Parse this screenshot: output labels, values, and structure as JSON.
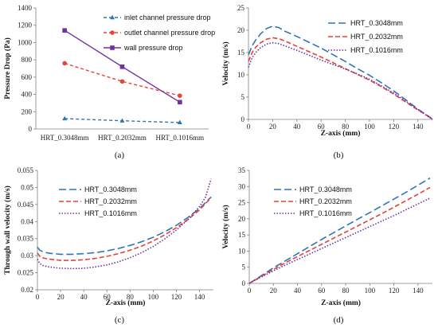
{
  "colors": {
    "blue": "#2e75b6",
    "red": "#e8423a",
    "purple": "#7030a0",
    "axis": "#7f7f7f"
  },
  "chart_data": [
    {
      "id": "a",
      "caption": "(a)",
      "type": "line",
      "categories": [
        "HRT_0.3048mm",
        "HRT_0.2032mm",
        "HRT_0.1016mm"
      ],
      "ylabel": "Pressure Drop (Pa)",
      "xlabel": "",
      "ylim": [
        0,
        1400
      ],
      "yticks": [
        0,
        200,
        400,
        600,
        800,
        1000,
        1200,
        1400
      ],
      "legend_position": "top-right",
      "grid": false,
      "series": [
        {
          "name": "inlet channel pressure drop",
          "color": "#2e75b6",
          "dash": "4,3",
          "marker": "triangle",
          "values": [
            120,
            95,
            75
          ]
        },
        {
          "name": "outlet channel pressure drop",
          "color": "#e8423a",
          "dash": "4,3",
          "marker": "circle",
          "values": [
            760,
            550,
            385
          ]
        },
        {
          "name": "wall pressure drop",
          "color": "#7030a0",
          "dash": "",
          "marker": "square",
          "values": [
            1140,
            720,
            310
          ]
        }
      ]
    },
    {
      "id": "b",
      "caption": "(b)",
      "type": "line",
      "xlabel": "Z-axis (mm)",
      "ylabel": "Velocity (m/s)",
      "xlim": [
        0,
        152
      ],
      "ylim": [
        0,
        25
      ],
      "xticks": [
        0,
        20,
        40,
        60,
        80,
        100,
        120,
        140
      ],
      "yticks": [
        0,
        5,
        10,
        15,
        20,
        25
      ],
      "legend_position": "top-right",
      "grid": false,
      "series": [
        {
          "name": "HRT_0.3048mm",
          "color": "#2e75b6",
          "dash": "9,4",
          "x": [
            0,
            3,
            6,
            10,
            15,
            20,
            25,
            30,
            40,
            50,
            60,
            70,
            80,
            90,
            100,
            110,
            120,
            130,
            140,
            145,
            150,
            152
          ],
          "y": [
            14.5,
            16.5,
            17.8,
            19.2,
            20.4,
            20.9,
            20.6,
            19.8,
            18.6,
            17.3,
            16.0,
            14.5,
            13.0,
            11.4,
            9.9,
            8.2,
            6.4,
            4.4,
            2.3,
            1.4,
            0.5,
            0
          ]
        },
        {
          "name": "HRT_0.2032mm",
          "color": "#e8423a",
          "dash": "6,3",
          "x": [
            0,
            3,
            6,
            10,
            15,
            20,
            25,
            30,
            40,
            50,
            60,
            70,
            80,
            90,
            100,
            110,
            120,
            130,
            140,
            145,
            150,
            152
          ],
          "y": [
            13.0,
            15.0,
            16.2,
            17.2,
            18.0,
            18.3,
            18.1,
            17.6,
            16.4,
            15.2,
            14.0,
            12.7,
            11.4,
            10.1,
            8.8,
            7.3,
            5.7,
            3.9,
            2.1,
            1.3,
            0.4,
            0
          ]
        },
        {
          "name": "HRT_0.1016mm",
          "color": "#7030a0",
          "dash": "1.5,2",
          "x": [
            0,
            3,
            6,
            10,
            15,
            20,
            25,
            30,
            40,
            50,
            60,
            70,
            80,
            90,
            100,
            110,
            120,
            130,
            140,
            145,
            150,
            152
          ],
          "y": [
            11.7,
            13.8,
            15.0,
            16.1,
            16.9,
            17.2,
            17.0,
            16.5,
            15.5,
            14.4,
            13.3,
            12.3,
            11.3,
            10.2,
            9.0,
            7.5,
            5.9,
            4.1,
            2.2,
            1.3,
            0.4,
            0
          ]
        }
      ]
    },
    {
      "id": "c",
      "caption": "(c)",
      "type": "line",
      "xlabel": "Z-axis (mm)",
      "ylabel": "Through wall velocity (m/s)",
      "xlim": [
        0,
        152
      ],
      "ylim": [
        0.02,
        0.055
      ],
      "xticks": [
        0,
        20,
        40,
        60,
        80,
        100,
        120,
        140
      ],
      "yticks": [
        0.02,
        0.025,
        0.03,
        0.035,
        0.04,
        0.045,
        0.05,
        0.055
      ],
      "legend_position": "top-left",
      "grid": false,
      "series": [
        {
          "name": "HRT_0.3048mm",
          "color": "#2e75b6",
          "dash": "9,4",
          "x": [
            0,
            2,
            5,
            10,
            20,
            30,
            40,
            50,
            60,
            70,
            80,
            90,
            100,
            110,
            120,
            130,
            140,
            145,
            150
          ],
          "y": [
            0.0325,
            0.0316,
            0.0311,
            0.0307,
            0.0304,
            0.0304,
            0.0306,
            0.0309,
            0.0314,
            0.0321,
            0.033,
            0.0341,
            0.0354,
            0.037,
            0.0389,
            0.0412,
            0.0438,
            0.0455,
            0.0472
          ]
        },
        {
          "name": "HRT_0.2032mm",
          "color": "#e8423a",
          "dash": "6,3",
          "x": [
            0,
            2,
            5,
            10,
            20,
            30,
            40,
            50,
            60,
            70,
            80,
            90,
            100,
            110,
            120,
            130,
            140,
            145,
            150
          ],
          "y": [
            0.0308,
            0.0298,
            0.0293,
            0.029,
            0.0286,
            0.0286,
            0.0288,
            0.0292,
            0.0298,
            0.0306,
            0.0316,
            0.0328,
            0.0343,
            0.0361,
            0.0382,
            0.0406,
            0.0434,
            0.0452,
            0.047
          ]
        },
        {
          "name": "HRT_0.1016mm",
          "color": "#7030a0",
          "dash": "1.5,2",
          "x": [
            0,
            2,
            5,
            10,
            20,
            30,
            40,
            50,
            60,
            70,
            80,
            90,
            100,
            110,
            120,
            130,
            140,
            145,
            150
          ],
          "y": [
            0.029,
            0.0277,
            0.0271,
            0.0267,
            0.0263,
            0.0262,
            0.0263,
            0.0267,
            0.0273,
            0.0282,
            0.0294,
            0.0309,
            0.0327,
            0.0349,
            0.0375,
            0.0406,
            0.0444,
            0.047,
            0.0525
          ]
        }
      ]
    },
    {
      "id": "d",
      "caption": "(d)",
      "type": "line",
      "xlabel": "Z-axis (mm)",
      "ylabel": "Velocity (m/s)",
      "xlim": [
        0,
        152
      ],
      "ylim": [
        0,
        35
      ],
      "xticks": [
        0,
        20,
        40,
        60,
        80,
        100,
        120,
        140
      ],
      "yticks": [
        0,
        5,
        10,
        15,
        20,
        25,
        30,
        35
      ],
      "legend_position": "top-left",
      "grid": false,
      "series": [
        {
          "name": "HRT_0.3048mm",
          "color": "#2e75b6",
          "dash": "9,4",
          "x": [
            0,
            10,
            20,
            30,
            40,
            50,
            60,
            70,
            80,
            90,
            100,
            110,
            120,
            130,
            140,
            150
          ],
          "y": [
            0,
            2.4,
            4.8,
            7.0,
            9.2,
            11.4,
            13.6,
            15.7,
            17.8,
            19.9,
            21.9,
            24.0,
            26.1,
            28.2,
            30.4,
            32.6
          ]
        },
        {
          "name": "HRT_0.2032mm",
          "color": "#e8423a",
          "dash": "6,3",
          "x": [
            0,
            10,
            20,
            30,
            40,
            50,
            60,
            70,
            80,
            90,
            100,
            110,
            120,
            130,
            140,
            150
          ],
          "y": [
            0,
            2.2,
            4.3,
            6.4,
            8.3,
            10.2,
            12.1,
            14.0,
            15.9,
            17.8,
            19.7,
            21.6,
            23.6,
            25.6,
            27.6,
            29.7
          ]
        },
        {
          "name": "HRT_0.1016mm",
          "color": "#7030a0",
          "dash": "1.5,2",
          "x": [
            0,
            10,
            20,
            30,
            40,
            50,
            60,
            70,
            80,
            90,
            100,
            110,
            120,
            130,
            140,
            150
          ],
          "y": [
            0,
            2.0,
            3.9,
            5.7,
            7.4,
            9.1,
            10.8,
            12.5,
            14.2,
            15.9,
            17.6,
            19.3,
            21.0,
            22.8,
            24.6,
            26.4
          ]
        }
      ]
    }
  ]
}
